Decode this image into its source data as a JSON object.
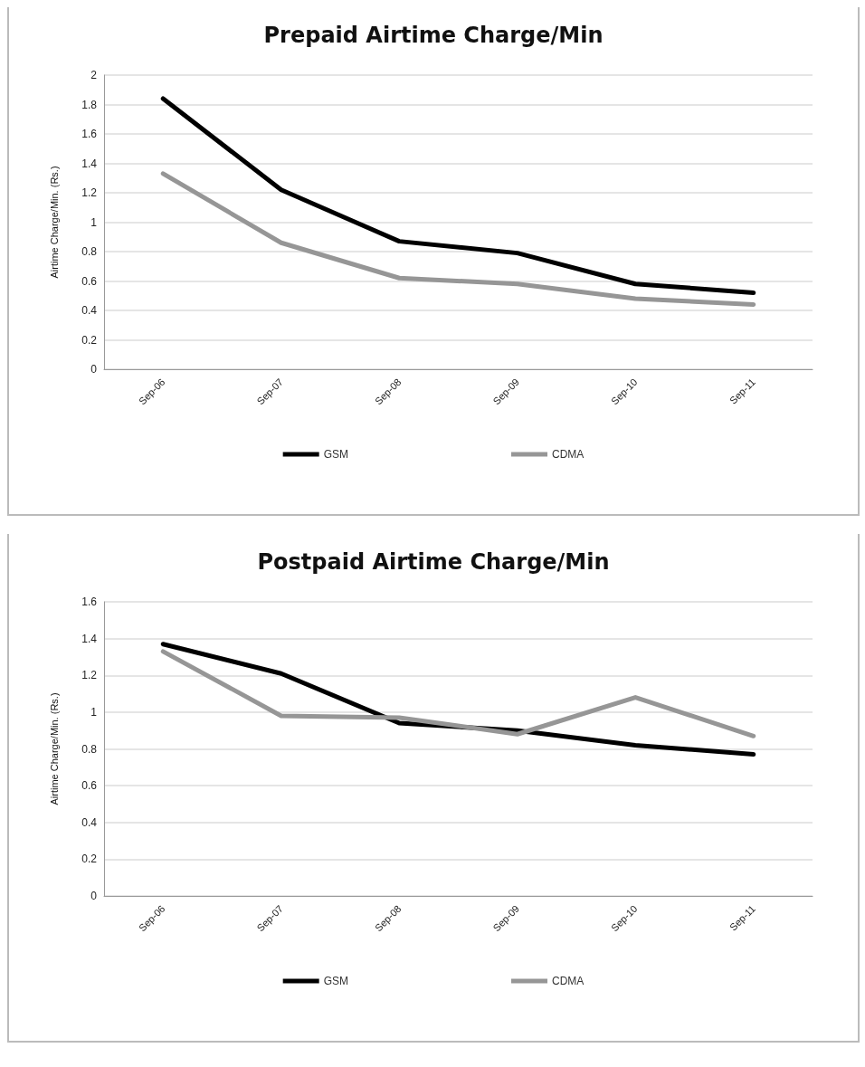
{
  "chart_data": [
    {
      "type": "line",
      "title": "Prepaid Airtime Charge/Min",
      "ylabel": "Airtime Charge/Min. (Rs.)",
      "categories": [
        "Sep-06",
        "Sep-07",
        "Sep-08",
        "Sep-09",
        "Sep-10",
        "Sep-11"
      ],
      "series": [
        {
          "name": "GSM",
          "color": "#000000",
          "values": [
            1.84,
            1.22,
            0.87,
            0.79,
            0.58,
            0.52
          ]
        },
        {
          "name": "CDMA",
          "color": "#969696",
          "values": [
            1.33,
            0.86,
            0.62,
            0.58,
            0.48,
            0.44
          ]
        }
      ],
      "ylim": [
        0,
        2
      ],
      "yticks": [
        0,
        0.2,
        0.4,
        0.6,
        0.8,
        1,
        1.2,
        1.4,
        1.6,
        1.8,
        2
      ],
      "grid": "y",
      "legend": "bottom",
      "marker": "none",
      "line_style": "solid"
    },
    {
      "type": "line",
      "title": "Postpaid Airtime Charge/Min",
      "ylabel": "Airtime Charge/Min. (Rs.)",
      "categories": [
        "Sep-06",
        "Sep-07",
        "Sep-08",
        "Sep-09",
        "Sep-10",
        "Sep-11"
      ],
      "series": [
        {
          "name": "GSM",
          "color": "#000000",
          "values": [
            1.37,
            1.21,
            0.94,
            0.9,
            0.82,
            0.77
          ]
        },
        {
          "name": "CDMA",
          "color": "#969696",
          "values": [
            1.33,
            0.98,
            0.97,
            0.88,
            1.08,
            0.87
          ]
        }
      ],
      "ylim": [
        0,
        1.6
      ],
      "yticks": [
        0,
        0.2,
        0.4,
        0.6,
        0.8,
        1,
        1.2,
        1.4,
        1.6
      ],
      "grid": "y",
      "legend": "bottom",
      "marker": "none",
      "line_style": "solid"
    }
  ]
}
